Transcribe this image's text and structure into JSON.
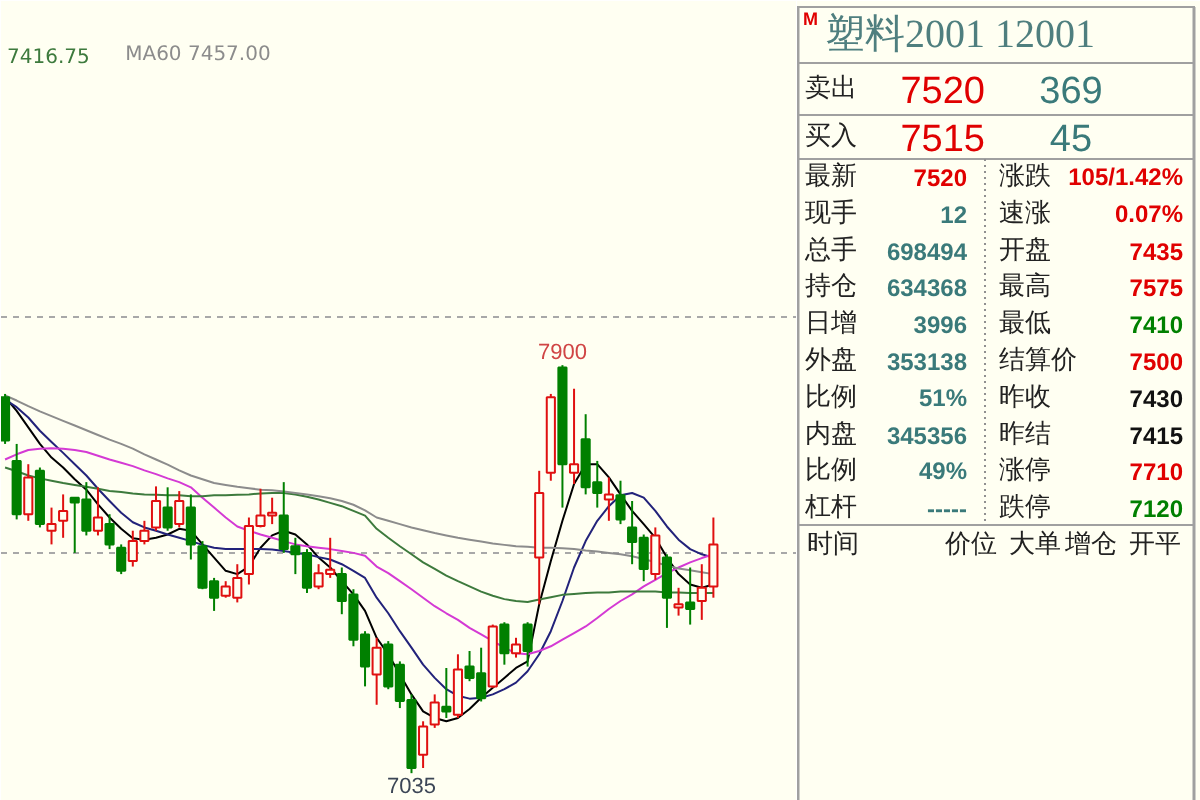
{
  "chart_data": [
    {
      "type": "candlestick",
      "categories": [
        null,
        null,
        null,
        null,
        null,
        null,
        null,
        null,
        null,
        null,
        null,
        null,
        null,
        null,
        null,
        null,
        null,
        null,
        null,
        null,
        null,
        null,
        null,
        null,
        null,
        null,
        null,
        null,
        null,
        null,
        null,
        null,
        null,
        null,
        null,
        null,
        null,
        null,
        null,
        null,
        null,
        null,
        null,
        null,
        null,
        null,
        null,
        null,
        null,
        null,
        null,
        null,
        null,
        null,
        null,
        null,
        null,
        null,
        null,
        null,
        null,
        null
      ],
      "ohlc": [
        [
          7832,
          7839,
          7733,
          7740
        ],
        [
          7697,
          7733,
          7573,
          7584
        ],
        [
          7584,
          7690,
          7570,
          7662
        ],
        [
          7676,
          7683,
          7556,
          7563
        ],
        [
          7549,
          7598,
          7520,
          7563
        ],
        [
          7570,
          7626,
          7534,
          7591
        ],
        [
          7619,
          7619,
          7502,
          7609
        ],
        [
          7615,
          7652,
          7539,
          7549
        ],
        [
          7549,
          7641,
          7539,
          7577
        ],
        [
          7563,
          7584,
          7510,
          7520
        ],
        [
          7513,
          7520,
          7457,
          7464
        ],
        [
          7485,
          7549,
          7473,
          7527
        ],
        [
          7527,
          7570,
          7520,
          7549
        ],
        [
          7556,
          7643,
          7549,
          7612
        ],
        [
          7598,
          7641,
          7549,
          7556
        ],
        [
          7563,
          7633,
          7556,
          7612
        ],
        [
          7598,
          7626,
          7488,
          7520
        ],
        [
          7516,
          7527,
          7425,
          7428
        ],
        [
          7442,
          7449,
          7379,
          7407
        ],
        [
          7411,
          7442,
          7407,
          7431
        ],
        [
          7407,
          7478,
          7397,
          7449
        ],
        [
          7457,
          7577,
          7435,
          7559
        ],
        [
          7559,
          7638,
          7556,
          7581
        ],
        [
          7581,
          7619,
          7563,
          7587
        ],
        [
          7581,
          7652,
          7502,
          7510
        ],
        [
          7516,
          7534,
          7457,
          7499
        ],
        [
          7502,
          7510,
          7417,
          7428
        ],
        [
          7431,
          7478,
          7425,
          7459
        ],
        [
          7457,
          7534,
          7449,
          7466
        ],
        [
          7457,
          7471,
          7372,
          7400
        ],
        [
          7414,
          7425,
          7304,
          7318
        ],
        [
          7329,
          7336,
          7219,
          7261
        ],
        [
          7244,
          7322,
          7180,
          7301
        ],
        [
          7308,
          7315,
          7213,
          7219
        ],
        [
          7265,
          7272,
          7173,
          7188
        ],
        [
          7190,
          7202,
          7035,
          7046
        ],
        [
          7074,
          7145,
          7046,
          7134
        ],
        [
          7138,
          7202,
          7131,
          7185
        ],
        [
          7176,
          7258,
          7152,
          7166
        ],
        [
          7159,
          7287,
          7152,
          7255
        ],
        [
          7261,
          7294,
          7230,
          7237
        ],
        [
          7247,
          7301,
          7187,
          7194
        ],
        [
          7219,
          7350,
          7216,
          7346
        ],
        [
          7350,
          7355,
          7265,
          7289
        ],
        [
          7289,
          7322,
          7280,
          7308
        ],
        [
          7350,
          7355,
          7261,
          7294
        ],
        [
          7492,
          7676,
          7393,
          7629
        ],
        [
          7672,
          7839,
          7655,
          7832
        ],
        [
          7895,
          7900,
          7598,
          7690
        ],
        [
          7672,
          7850,
          7648,
          7690
        ],
        [
          7743,
          7796,
          7626,
          7641
        ],
        [
          7652,
          7697,
          7598,
          7629
        ],
        [
          7615,
          7662,
          7570,
          7626
        ],
        [
          7624,
          7655,
          7563,
          7573
        ],
        [
          7556,
          7612,
          7478,
          7525
        ],
        [
          7534,
          7541,
          7442,
          7468
        ],
        [
          7457,
          7556,
          7445,
          7539
        ],
        [
          7492,
          7499,
          7343,
          7407
        ],
        [
          7386,
          7428,
          7369,
          7393
        ],
        [
          7397,
          7471,
          7350,
          7383
        ],
        [
          7400,
          7478,
          7360,
          7428
        ],
        [
          7431,
          7577,
          7407,
          7520
        ]
      ],
      "colors": [
        "#008000",
        "#008000",
        "#e01010",
        "#008000",
        "#e01010",
        "#e01010",
        "#008000",
        "#008000",
        "#e01010",
        "#008000",
        "#008000",
        "#e01010",
        "#e01010",
        "#e01010",
        "#008000",
        "#e01010",
        "#008000",
        "#008000",
        "#008000",
        "#e01010",
        "#e01010",
        "#e01010",
        "#e01010",
        "#e01010",
        "#008000",
        "#008000",
        "#008000",
        "#e01010",
        "#e01010",
        "#008000",
        "#008000",
        "#008000",
        "#e01010",
        "#008000",
        "#008000",
        "#008000",
        "#e01010",
        "#e01010",
        "#008000",
        "#e01010",
        "#008000",
        "#008000",
        "#e01010",
        "#008000",
        "#e01010",
        "#008000",
        "#e01010",
        "#e01010",
        "#008000",
        "#e01010",
        "#008000",
        "#008000",
        "#e01010",
        "#008000",
        "#008000",
        "#008000",
        "#e01010",
        "#008000",
        "#e01010",
        "#008000",
        "#e01010",
        "#e01010"
      ],
      "series": [
        {
          "type": "line",
          "color": "#000000",
          "values": [
            7832,
            7803,
            7768,
            7733,
            7704,
            7683,
            7658,
            7636,
            7605,
            7577,
            7553,
            7533,
            7530,
            7534,
            7541,
            7553,
            7549,
            7520,
            7492,
            7464,
            7457,
            7473,
            7513,
            7539,
            7549,
            7541,
            7520,
            7492,
            7471,
            7442,
            7414,
            7379,
            7322,
            7287,
            7244,
            7202,
            7166,
            7152,
            7145,
            7152,
            7171,
            7195,
            7216,
            7237,
            7258,
            7272,
            7393,
            7485,
            7570,
            7648,
            7690,
            7690,
            7662,
            7626,
            7591,
            7563,
            7534,
            7492,
            7457,
            7435,
            7428,
            7435
          ]
        },
        {
          "type": "line",
          "color": "#22227a",
          "values": [
            7827,
            7811,
            7789,
            7761,
            7737,
            7714,
            7690,
            7666,
            7638,
            7612,
            7587,
            7567,
            7556,
            7549,
            7541,
            7534,
            7527,
            7519,
            7513,
            7510,
            7510,
            7510,
            7510,
            7509,
            7506,
            7502,
            7499,
            7493,
            7488,
            7478,
            7464,
            7449,
            7407,
            7374,
            7336,
            7301,
            7265,
            7237,
            7213,
            7199,
            7193,
            7195,
            7202,
            7213,
            7227,
            7251,
            7287,
            7336,
            7400,
            7471,
            7527,
            7570,
            7601,
            7624,
            7629,
            7619,
            7591,
            7558,
            7530,
            7510,
            7499,
            7492
          ]
        },
        {
          "type": "line",
          "color": "#d43ad4",
          "values": [
            7700,
            7711,
            7720,
            7723,
            7724,
            7723,
            7720,
            7716,
            7708,
            7700,
            7693,
            7686,
            7677,
            7669,
            7660,
            7652,
            7641,
            7619,
            7598,
            7577,
            7558,
            7549,
            7541,
            7534,
            7527,
            7520,
            7516,
            7513,
            7510,
            7506,
            7502,
            7496,
            7473,
            7459,
            7442,
            7425,
            7407,
            7389,
            7374,
            7360,
            7343,
            7329,
            7315,
            7301,
            7289,
            7287,
            7294,
            7304,
            7318,
            7332,
            7346,
            7364,
            7383,
            7400,
            7414,
            7431,
            7445,
            7459,
            7471,
            7482,
            7491,
            7499
          ]
        },
        {
          "type": "line",
          "name": "7416.75",
          "color": "#3d7a3d",
          "values": [
            7683,
            7675,
            7666,
            7660,
            7655,
            7650,
            7646,
            7642,
            7638,
            7633,
            7631,
            7628,
            7626,
            7625,
            7624,
            7624,
            7622,
            7622,
            7624,
            7624,
            7625,
            7626,
            7628,
            7629,
            7629,
            7626,
            7621,
            7615,
            7608,
            7601,
            7591,
            7581,
            7553,
            7534,
            7516,
            7499,
            7482,
            7468,
            7454,
            7442,
            7431,
            7420,
            7411,
            7404,
            7400,
            7398,
            7403,
            7408,
            7413,
            7415,
            7417,
            7418,
            7418,
            7420,
            7420,
            7420,
            7420,
            7418,
            7418,
            7417,
            7417,
            7417
          ]
        },
        {
          "type": "line",
          "name": "MA60 7457.00",
          "color": "#8c8c8c",
          "values": [
            7836,
            7825,
            7813,
            7802,
            7792,
            7782,
            7772,
            7762,
            7752,
            7742,
            7733,
            7723,
            7711,
            7700,
            7689,
            7677,
            7666,
            7658,
            7650,
            7646,
            7642,
            7639,
            7636,
            7635,
            7632,
            7629,
            7626,
            7622,
            7618,
            7612,
            7604,
            7592,
            7577,
            7570,
            7563,
            7556,
            7550,
            7544,
            7539,
            7534,
            7530,
            7526,
            7522,
            7519,
            7516,
            7515,
            7513,
            7513,
            7512,
            7510,
            7507,
            7505,
            7502,
            7499,
            7495,
            7489,
            7482,
            7475,
            7469,
            7465,
            7461,
            7457
          ]
        }
      ],
      "ylim": [
        6976,
        8672
      ],
      "yticks": [
        {
          "value": 8000,
          "label": null
        },
        {
          "value": 7500,
          "label": null
        }
      ],
      "tick_labels": false,
      "grid": "y",
      "legend": "top left",
      "annotations": [
        {
          "text": "7900",
          "y": 7900
        },
        {
          "text": "7035",
          "y": 7035
        }
      ]
    },
    {
      "type": "other",
      "title": "塑料2001  12001",
      "annotations": [
        "M",
        "卖出",
        "7520",
        "369",
        "买入",
        "7515",
        "45",
        "最新",
        "7520",
        "涨跌",
        "105/1.42%",
        "现手",
        "12",
        "速涨",
        "0.07%",
        "总手",
        "698494",
        "开盘",
        "7435",
        "持仓",
        "634368",
        "最高",
        "7575",
        "日增",
        "3996",
        "最低",
        "7410",
        "外盘",
        "353138",
        "结算价",
        "7500",
        "比例",
        "51%",
        "昨收",
        "7430",
        "内盘",
        "345356",
        "昨结",
        "7415",
        "比例",
        "49%",
        "涨停",
        "7710",
        "杠杆",
        "-----",
        "跌停",
        "7120",
        "时间",
        "价位",
        "大单",
        "增仓",
        "开平"
      ],
      "colors": [
        "#e00000",
        "#222222",
        "#e00000",
        "#3a7a7a",
        "#222222",
        "#e00000",
        "#3a7a7a",
        "#222222",
        "#e00000",
        "#222222",
        "#e00000",
        "#222222",
        "#3a7a7a",
        "#222222",
        "#e00000",
        "#222222",
        "#3a7a7a",
        "#222222",
        "#e00000",
        "#222222",
        "#3a7a7a",
        "#222222",
        "#e00000",
        "#222222",
        "#3a7a7a",
        "#222222",
        "#008000",
        "#222222",
        "#3a7a7a",
        "#222222",
        "#e00000",
        "#222222",
        "#3a7a7a",
        "#222222",
        "#111111",
        "#222222",
        "#3a7a7a",
        "#222222",
        "#111111",
        "#222222",
        "#3a7a7a",
        "#222222",
        "#e00000",
        "#222222",
        "#3a7a7a",
        "#222222",
        "#008000",
        "#222222",
        "#222222",
        "#222222",
        "#222222",
        "#222222"
      ]
    }
  ]
}
